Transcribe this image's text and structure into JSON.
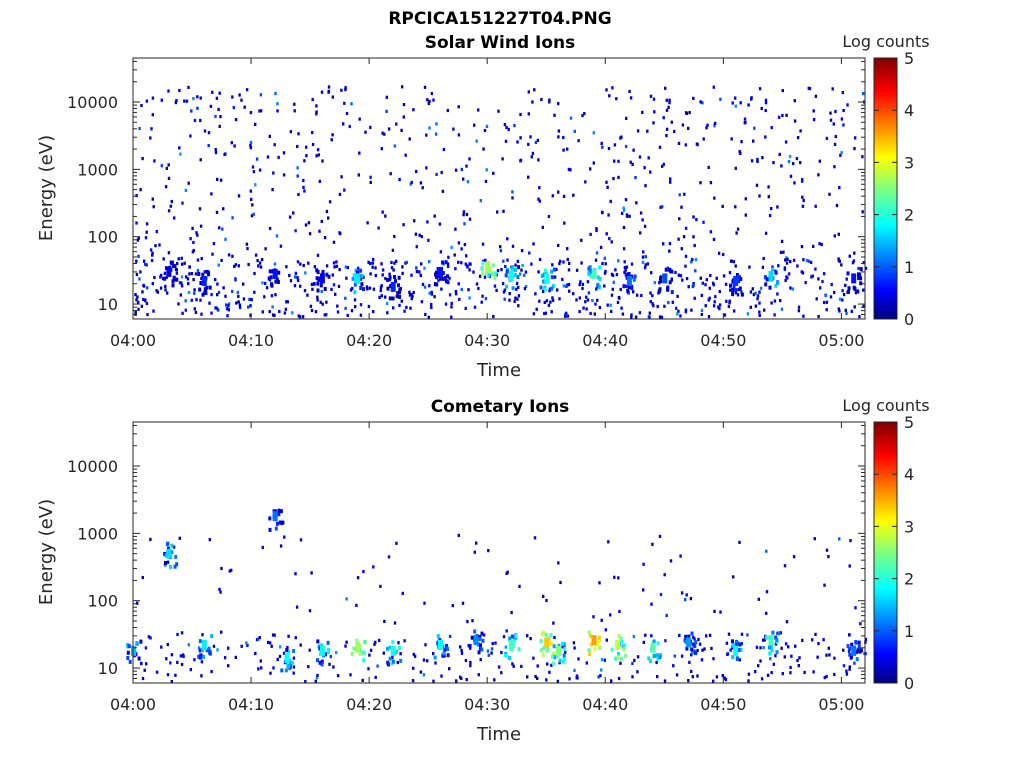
{
  "figure": {
    "title": "RPCICA151227T04.PNG"
  },
  "colors": {
    "colormap": "jet",
    "axis": "#262626"
  },
  "chart_data": [
    {
      "type": "heatmap",
      "title": "Solar Wind Ions",
      "xlabel": "Time",
      "ylabel": "Energy (eV)",
      "y_scale": "log",
      "xlim": [
        "04:00",
        "05:02"
      ],
      "ylim": [
        6,
        45000
      ],
      "x_ticks": [
        "04:00",
        "04:10",
        "04:20",
        "04:30",
        "04:40",
        "04:50",
        "05:00"
      ],
      "y_ticks": [
        "10",
        "100",
        "1000",
        "10000"
      ],
      "colorbar": {
        "label": "Log counts",
        "min": 0,
        "max": 5,
        "ticks": [
          "0",
          "1",
          "2",
          "3",
          "4",
          "5"
        ]
      },
      "grid": false,
      "description_of_values": "sparse single counts (log counts ~0-1) from 10 eV to ~15000 eV; denser from 6-40 eV",
      "hotspots": [
        {
          "time": "04:03",
          "energy": 30,
          "log_counts": 0.6
        },
        {
          "time": "04:06",
          "energy": 22,
          "log_counts": 0.8
        },
        {
          "time": "04:12",
          "energy": 28,
          "log_counts": 0.7
        },
        {
          "time": "04:16",
          "energy": 24,
          "log_counts": 0.6
        },
        {
          "time": "04:19",
          "energy": 24,
          "log_counts": 1.8
        },
        {
          "time": "04:22",
          "energy": 18,
          "log_counts": 0.8
        },
        {
          "time": "04:26",
          "energy": 30,
          "log_counts": 0.7
        },
        {
          "time": "04:30",
          "energy": 36,
          "log_counts": 2.7
        },
        {
          "time": "04:32",
          "energy": 26,
          "log_counts": 1.9
        },
        {
          "time": "04:35",
          "energy": 24,
          "log_counts": 2.0
        },
        {
          "time": "04:39",
          "energy": 28,
          "log_counts": 2.2
        },
        {
          "time": "04:42",
          "energy": 22,
          "log_counts": 1.2
        },
        {
          "time": "04:45",
          "energy": 24,
          "log_counts": 1.0
        },
        {
          "time": "04:51",
          "energy": 22,
          "log_counts": 0.9
        },
        {
          "time": "04:54",
          "energy": 26,
          "log_counts": 1.7
        },
        {
          "time": "05:01",
          "energy": 24,
          "log_counts": 0.7
        }
      ]
    },
    {
      "type": "heatmap",
      "title": "Cometary Ions",
      "xlabel": "Time",
      "ylabel": "Energy (eV)",
      "y_scale": "log",
      "xlim": [
        "04:00",
        "05:02"
      ],
      "ylim": [
        6,
        45000
      ],
      "x_ticks": [
        "04:00",
        "04:10",
        "04:20",
        "04:30",
        "04:40",
        "04:50",
        "05:00"
      ],
      "y_ticks": [
        "10",
        "100",
        "1000",
        "10000"
      ],
      "colorbar": {
        "label": "Log counts",
        "min": 0,
        "max": 5,
        "ticks": [
          "0",
          "1",
          "2",
          "3",
          "4",
          "5"
        ]
      },
      "grid": false,
      "description_of_values": "bursts of cometary ions mostly 6-40 eV with dispersed streaks up to ~1000 eV",
      "hotspots": [
        {
          "time": "04:00",
          "energy": 18,
          "log_counts": 1.6
        },
        {
          "time": "04:03",
          "energy": 500,
          "log_counts": 1.7
        },
        {
          "time": "04:06",
          "energy": 22,
          "log_counts": 1.8
        },
        {
          "time": "04:12",
          "energy": 1800,
          "log_counts": 1.2
        },
        {
          "time": "04:13",
          "energy": 14,
          "log_counts": 1.9
        },
        {
          "time": "04:16",
          "energy": 18,
          "log_counts": 1.9
        },
        {
          "time": "04:19",
          "energy": 20,
          "log_counts": 2.7
        },
        {
          "time": "04:22",
          "energy": 18,
          "log_counts": 2.0
        },
        {
          "time": "04:26",
          "energy": 22,
          "log_counts": 1.9
        },
        {
          "time": "04:29",
          "energy": 26,
          "log_counts": 1.3
        },
        {
          "time": "04:32",
          "energy": 22,
          "log_counts": 2.2
        },
        {
          "time": "04:35",
          "energy": 24,
          "log_counts": 3.4
        },
        {
          "time": "04:36",
          "energy": 18,
          "log_counts": 2.5
        },
        {
          "time": "04:39",
          "energy": 26,
          "log_counts": 3.6
        },
        {
          "time": "04:41",
          "energy": 22,
          "log_counts": 2.8
        },
        {
          "time": "04:44",
          "energy": 20,
          "log_counts": 2.3
        },
        {
          "time": "04:47",
          "energy": 24,
          "log_counts": 1.4
        },
        {
          "time": "04:51",
          "energy": 18,
          "log_counts": 1.9
        },
        {
          "time": "04:54",
          "energy": 26,
          "log_counts": 2.2
        },
        {
          "time": "05:01",
          "energy": 18,
          "log_counts": 1.2
        }
      ]
    }
  ]
}
